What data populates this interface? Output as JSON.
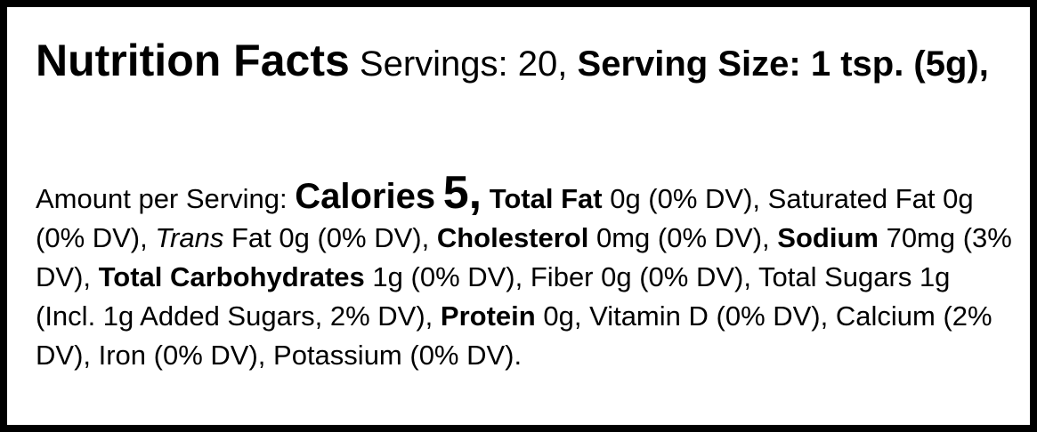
{
  "header": {
    "title": "Nutrition Facts",
    "servings": "Servings: 20,",
    "serving_size_label": "Serving Size: 1",
    "serving_size_value": "tsp. (5g),"
  },
  "amount": {
    "intro": "Amount per Serving:",
    "calories_label": "Calories",
    "calories_value": "5,"
  },
  "nutrients": {
    "total_fat_label": "Total Fat",
    "total_fat_value": "0g (0% DV),",
    "saturated_fat": "Saturated Fat 0g (0% DV),",
    "trans_label": "Trans",
    "trans_value": "Fat 0g (0% DV),",
    "cholesterol_label": "Cholesterol",
    "cholesterol_value": "0mg (0% DV),",
    "sodium_label": "Sodium",
    "sodium_value": "70mg (3% DV),",
    "total_carbs_label": "Total Carbohydrates",
    "total_carbs_value": "1g (0% DV),",
    "fiber": "Fiber 0g (0% DV),",
    "total_sugars": "Total Sugars 1g (Incl. 1g Added Sugars, 2% DV),",
    "protein_label": "Protein",
    "protein_value": "0g,",
    "vitamin_d": "Vitamin D (0% DV),",
    "calcium": "Calcium (2% DV),",
    "iron": "Iron (0% DV),",
    "potassium": "Potassium (0% DV)."
  }
}
